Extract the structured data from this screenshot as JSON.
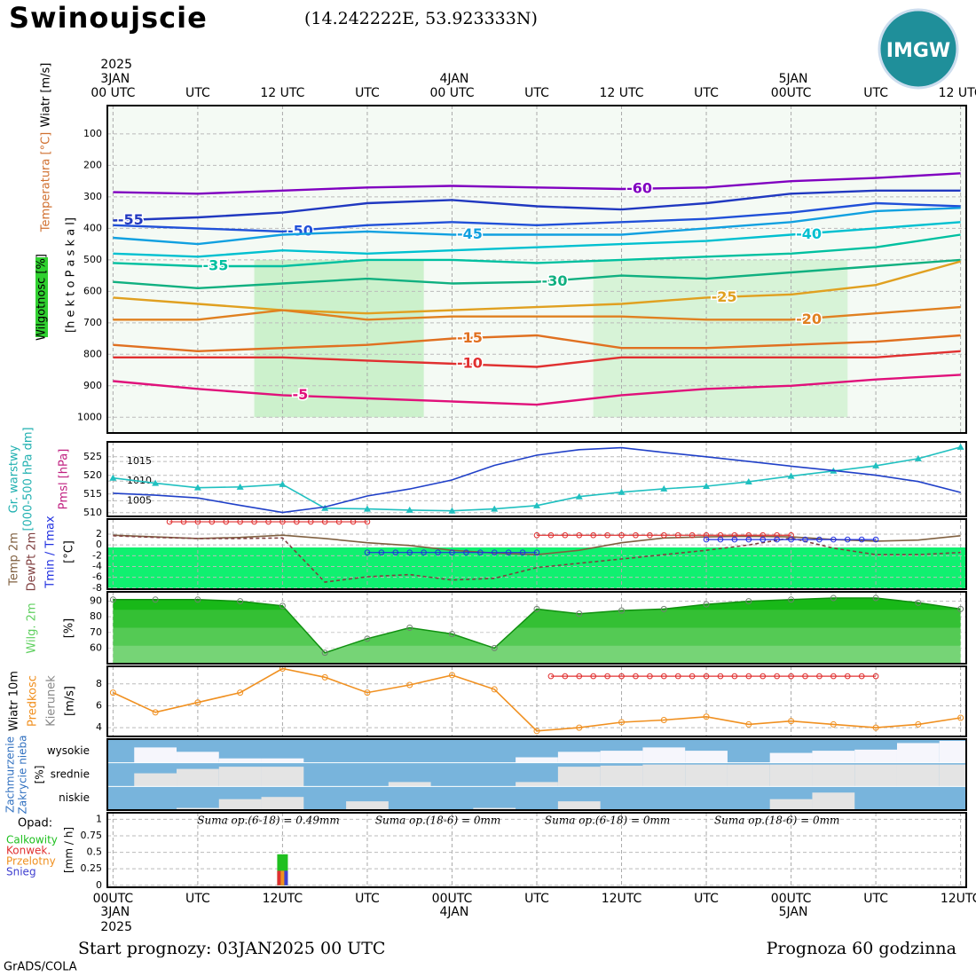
{
  "header": {
    "title": "Swinoujscie",
    "coords": "(14.242222E, 53.923333N)",
    "logo": "IMGW"
  },
  "footer": {
    "start": "Start prognozy: 03JAN2025 00 UTC",
    "range": "Prognoza 60 godzinna",
    "credit": "GrADS/COLA"
  },
  "time_axis": {
    "xlim": [
      -0.4,
      60.4
    ],
    "top_ticks": [
      {
        "value": 0,
        "label": "00 UTC"
      },
      {
        "value": 6,
        "label": "UTC"
      },
      {
        "value": 12,
        "label": "12 UTC"
      },
      {
        "value": 18,
        "label": "UTC"
      },
      {
        "value": 24,
        "label": "00 UTC"
      },
      {
        "value": 30,
        "label": "UTC"
      },
      {
        "value": 36,
        "label": "12 UTC"
      },
      {
        "value": 42,
        "label": "UTC"
      },
      {
        "value": 48,
        "label": "00UTC"
      },
      {
        "value": 54,
        "label": "UTC"
      },
      {
        "value": 60,
        "label": "12 UTC"
      }
    ],
    "bottom_ticks": [
      {
        "value": 0,
        "label": "00UTC"
      },
      {
        "value": 6,
        "label": "UTC"
      },
      {
        "value": 12,
        "label": "12UTC"
      },
      {
        "value": 18,
        "label": "UTC"
      },
      {
        "value": 24,
        "label": "00UTC"
      },
      {
        "value": 30,
        "label": "UTC"
      },
      {
        "value": 36,
        "label": "12UTC"
      },
      {
        "value": 42,
        "label": "UTC"
      },
      {
        "value": 48,
        "label": "00UTC"
      },
      {
        "value": 54,
        "label": "UTC"
      },
      {
        "value": 60,
        "label": "12UTC"
      }
    ],
    "dates": [
      {
        "value": 0,
        "label": "3JAN"
      },
      {
        "value": 24,
        "label": "4JAN"
      },
      {
        "value": 48,
        "label": "5JAN"
      }
    ],
    "year": "2025"
  },
  "chart_data": [
    {
      "type": "contour",
      "axis_labels": [
        "Wiatr [m/s]",
        "Temperatura [°C]",
        "Wilgotnosc [%]",
        "[h e k t o P a s k a l]"
      ],
      "ylim": [
        1050,
        10
      ],
      "yticks": [
        100,
        200,
        300,
        400,
        500,
        600,
        700,
        800,
        900,
        1000
      ],
      "grid": true,
      "x": [
        0,
        6,
        12,
        18,
        24,
        30,
        36,
        42,
        48,
        54,
        60
      ],
      "series": [
        {
          "name": "-60",
          "color": "#8000c0",
          "values": [
            285,
            290,
            280,
            270,
            265,
            270,
            275,
            270,
            250,
            240,
            225
          ]
        },
        {
          "name": "-55",
          "color": "#2038c0",
          "values": [
            375,
            365,
            350,
            320,
            310,
            330,
            340,
            320,
            290,
            280,
            280
          ]
        },
        {
          "name": "-50",
          "color": "#2050d8",
          "values": [
            390,
            400,
            410,
            390,
            380,
            390,
            380,
            370,
            350,
            320,
            330
          ]
        },
        {
          "name": "-45",
          "color": "#10a0e0",
          "values": [
            430,
            450,
            420,
            410,
            420,
            420,
            420,
            400,
            380,
            345,
            335
          ]
        },
        {
          "name": "-40",
          "color": "#00c0d0",
          "values": [
            480,
            490,
            470,
            480,
            470,
            460,
            450,
            440,
            420,
            400,
            380
          ]
        },
        {
          "name": "-35",
          "color": "#00c0a0",
          "values": [
            510,
            520,
            520,
            500,
            500,
            510,
            500,
            490,
            480,
            460,
            420
          ]
        },
        {
          "name": "-30",
          "color": "#10b080",
          "values": [
            570,
            590,
            575,
            560,
            575,
            570,
            550,
            560,
            540,
            520,
            500
          ]
        },
        {
          "name": "-25",
          "color": "#e0a020",
          "values": [
            620,
            640,
            660,
            670,
            660,
            650,
            640,
            620,
            610,
            580,
            505
          ]
        },
        {
          "name": "-20",
          "color": "#e08020",
          "values": [
            690,
            690,
            660,
            690,
            680,
            680,
            680,
            690,
            690,
            670,
            650
          ]
        },
        {
          "name": "-15",
          "color": "#e07020",
          "values": [
            770,
            790,
            780,
            770,
            750,
            740,
            780,
            780,
            770,
            760,
            740
          ]
        },
        {
          "name": "-10",
          "color": "#e03030",
          "values": [
            810,
            810,
            810,
            820,
            830,
            840,
            810,
            810,
            810,
            810,
            790
          ]
        },
        {
          "name": "-5",
          "color": "#e0107a",
          "values": [
            885,
            910,
            930,
            940,
            950,
            960,
            930,
            910,
            900,
            880,
            865
          ]
        }
      ]
    },
    {
      "type": "line",
      "ylabel": "Gr. warstwy",
      "ylabel2": "[000-500 hPa dm]",
      "y2label": "Pmsl [hPa]",
      "ylim": [
        509,
        529
      ],
      "yticks": [
        510,
        515,
        520,
        525
      ],
      "y2lim": [
        1001,
        1020
      ],
      "y2ticks": [
        1005,
        1010,
        1015
      ],
      "grid": true,
      "x": [
        0,
        3,
        6,
        9,
        12,
        15,
        18,
        21,
        24,
        27,
        30,
        33,
        36,
        39,
        42,
        45,
        48,
        51,
        54,
        57,
        60
      ],
      "series": [
        {
          "color": "#20c0c0",
          "marker": "triangle",
          "values": [
            519.3,
            517.9,
            516.7,
            516.9,
            517.6,
            511.2,
            511,
            510.7,
            510.5,
            511,
            511.9,
            514.3,
            515.5,
            516.4,
            517.1,
            518.3,
            519.8,
            521.2,
            522.6,
            524.5,
            527.6
          ]
        },
        {
          "color": "#2040c8",
          "axis": "y2",
          "values": [
            1006.9,
            1006.4,
            1005.7,
            1003.8,
            1002,
            1003.4,
            1006.2,
            1008,
            1010.3,
            1014,
            1016.6,
            1018,
            1018.5,
            1017.3,
            1016.2,
            1015,
            1013.8,
            1012.7,
            1011.5,
            1009.9,
            1007.1
          ]
        }
      ]
    },
    {
      "type": "line",
      "extremes_label": "Tmin / Tmax",
      "ylabel": "[°C]",
      "ylim": [
        -8.2,
        4.8
      ],
      "yticks": [
        2,
        0,
        -2,
        -4,
        -6,
        -8
      ],
      "grid": true,
      "x": [
        0,
        3,
        6,
        9,
        12,
        15,
        18,
        21,
        24,
        27,
        30,
        33,
        36,
        39,
        42,
        45,
        48,
        51,
        54,
        57,
        60
      ],
      "series": [
        {
          "name": "Temp 2m",
          "color": "#806040",
          "values": [
            1.8,
            1.5,
            1.2,
            1.4,
            1.8,
            1.2,
            0.4,
            -0.1,
            -1,
            -1.5,
            -1.8,
            -1,
            0.4,
            1.3,
            1.5,
            1.6,
            1.5,
            1,
            0.7,
            0.9,
            1.7
          ]
        },
        {
          "name": "DewPt 2m",
          "color": "#804040",
          "dashed": true,
          "values": [
            1.7,
            1.4,
            1.2,
            1.2,
            1.3,
            -6.9,
            -5.9,
            -5.5,
            -6.5,
            -6.2,
            -4.2,
            -3.4,
            -2.6,
            -1.8,
            -1,
            0,
            1.3,
            -0.6,
            -1.8,
            -1.8,
            -1.4
          ]
        }
      ],
      "extremes": [
        {
          "color": "#e03030",
          "segments": [
            {
              "x": [
                4,
                18
              ],
              "value": 4.3
            },
            {
              "x": [
                30,
                48
              ],
              "value": 1.8
            }
          ]
        },
        {
          "color": "#2030e0",
          "segments": [
            {
              "x": [
                18,
                30
              ],
              "value": -1.4
            },
            {
              "x": [
                42,
                54
              ],
              "value": 1
            }
          ]
        }
      ]
    },
    {
      "type": "area",
      "ylabel": "Wilg. 2m",
      "unit": "[%]",
      "ylim": [
        50,
        96
      ],
      "yticks": [
        90,
        80,
        70,
        60
      ],
      "grid": true,
      "color": "#18b818",
      "x": [
        0,
        3,
        6,
        9,
        12,
        15,
        18,
        21,
        24,
        27,
        30,
        33,
        36,
        39,
        42,
        45,
        48,
        51,
        54,
        57,
        60
      ],
      "values": [
        91,
        91,
        91,
        90,
        87,
        57,
        66,
        73,
        69,
        60,
        85,
        82,
        84,
        85,
        88,
        90,
        91,
        92,
        92,
        89,
        85
      ]
    },
    {
      "type": "line",
      "axis_labels": [
        "Wiatr 10m",
        "Predkosc",
        "Kierunek",
        "[m/s]"
      ],
      "ylim": [
        3.2,
        9.6
      ],
      "yticks": [
        8,
        6,
        4
      ],
      "grid": true,
      "x": [
        0,
        3,
        6,
        9,
        12,
        15,
        18,
        21,
        24,
        27,
        30,
        33,
        36,
        39,
        42,
        45,
        48,
        51,
        54,
        57,
        60
      ],
      "series": [
        {
          "color": "#f09020",
          "marker": "circle",
          "values": [
            7.2,
            5.4,
            6.3,
            7.2,
            9.4,
            8.6,
            7.2,
            7.9,
            8.8,
            7.5,
            3.7,
            4,
            4.5,
            4.7,
            5,
            4.3,
            4.6,
            4.3,
            4,
            4.3,
            4.9
          ]
        }
      ],
      "extremes": [
        {
          "color": "#e03030",
          "segments": [
            {
              "x": [
                31,
                54
              ],
              "value": 8.7
            }
          ]
        }
      ]
    },
    {
      "type": "cloud",
      "ylabel": "Zachmurzenie",
      "ylabel2": "Zakrycie nieba",
      "unit": "[%]",
      "x": [
        0,
        3,
        6,
        9,
        12,
        15,
        18,
        21,
        24,
        27,
        30,
        33,
        36,
        39,
        42,
        45,
        48,
        51,
        54,
        57,
        60
      ],
      "series": [
        {
          "name": "wysokie",
          "color": "#f6f6fc",
          "values": [
            0,
            70,
            50,
            20,
            20,
            0,
            0,
            0,
            0,
            0,
            25,
            50,
            55,
            70,
            55,
            0,
            45,
            55,
            60,
            90,
            100
          ]
        },
        {
          "name": "srednie",
          "color": "#e4e4e4",
          "values": [
            0,
            60,
            80,
            90,
            90,
            0,
            0,
            20,
            0,
            0,
            20,
            90,
            95,
            100,
            100,
            100,
            100,
            100,
            100,
            100,
            100
          ]
        },
        {
          "name": "niskie",
          "color": "#e4e4e4",
          "values": [
            0,
            0,
            10,
            50,
            60,
            0,
            40,
            0,
            0,
            10,
            0,
            40,
            0,
            0,
            0,
            0,
            50,
            80,
            0,
            0,
            0
          ]
        }
      ]
    },
    {
      "type": "bar",
      "title": "Opad:",
      "ylabel": "[mm / h]",
      "ylim": [
        -0.03,
        1.1
      ],
      "yticks": [
        0,
        0.25,
        0.5,
        0.75,
        1
      ],
      "grid": true,
      "x": [
        12
      ],
      "series": [
        {
          "name": "Calkowity",
          "color": "#20c020",
          "values": [
            0.47
          ]
        },
        {
          "name": "Konwek.",
          "color": "#e03030",
          "values": [
            0.22
          ]
        },
        {
          "name": "Przelotny",
          "color": "#f09020",
          "values": [
            0.22
          ]
        },
        {
          "name": "Snieg",
          "color": "#4040d0",
          "values": [
            0.22
          ]
        }
      ],
      "annotations": [
        "Suma op.(6-18) = 0.49mm",
        "Suma op.(18-6) = 0mm",
        "Suma op.(6-18) = 0mm",
        "Suma op.(18-6) = 0mm"
      ]
    }
  ]
}
